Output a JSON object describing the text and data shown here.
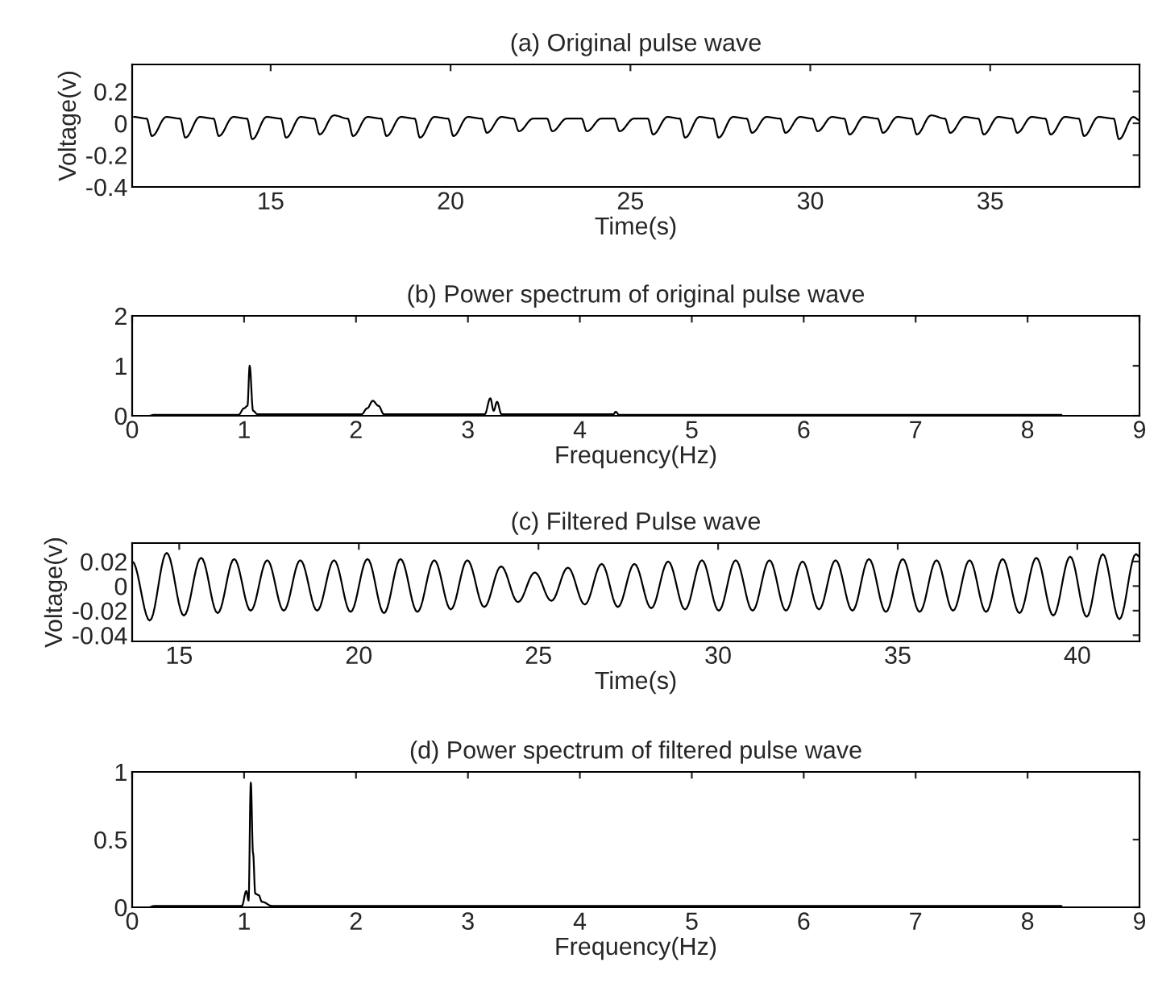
{
  "chart_data": [
    {
      "type": "line",
      "title": "(a) Original pulse wave",
      "xlabel": "Time(s)",
      "ylabel": "Voltage(v)",
      "xlim": [
        11.15,
        39.15
      ],
      "ylim": [
        -0.4,
        0.37
      ],
      "xticks": [
        15,
        20,
        25,
        30,
        35
      ],
      "yticks": [
        -0.4,
        -0.2,
        0,
        0.2
      ],
      "series": [
        {
          "color": "#000000",
          "x": [
            11.2,
            11.55,
            11.7,
            12.1,
            12.48,
            12.63,
            13.03,
            13.41,
            13.56,
            13.96,
            14.34,
            14.49,
            14.89,
            15.28,
            15.43,
            15.83,
            16.21,
            16.36,
            16.76,
            17.14,
            17.29,
            17.69,
            18.07,
            18.22,
            18.62,
            19.0,
            19.15,
            19.55,
            19.93,
            20.08,
            20.48,
            20.86,
            21.01,
            21.41,
            21.75,
            21.9,
            22.3,
            22.68,
            22.83,
            23.23,
            23.64,
            23.79,
            24.19,
            24.55,
            24.7,
            25.1,
            25.48,
            25.63,
            26.03,
            26.37,
            26.52,
            26.92,
            27.3,
            27.45,
            27.85,
            28.23,
            28.38,
            28.78,
            29.16,
            29.31,
            29.71,
            30.05,
            30.2,
            30.6,
            30.94,
            31.09,
            31.49,
            31.87,
            32.02,
            32.42,
            32.81,
            32.96,
            33.36,
            33.74,
            33.89,
            34.29,
            34.67,
            34.82,
            35.22,
            35.6,
            35.75,
            36.15,
            36.53,
            36.68,
            37.08,
            37.46,
            37.61,
            38.01,
            38.43,
            38.58,
            38.98,
            39.15
          ],
          "values": [
            0.04,
            0.03,
            -0.08,
            0.04,
            0.03,
            -0.09,
            0.04,
            0.03,
            -0.08,
            0.04,
            0.03,
            -0.1,
            0.04,
            0.03,
            -0.09,
            0.04,
            0.03,
            -0.07,
            0.05,
            0.03,
            -0.08,
            0.04,
            0.03,
            -0.08,
            0.04,
            0.03,
            -0.09,
            0.04,
            0.03,
            -0.08,
            0.04,
            0.03,
            -0.06,
            0.04,
            0.03,
            -0.05,
            0.03,
            0.03,
            -0.05,
            0.03,
            0.03,
            -0.05,
            0.03,
            0.03,
            -0.05,
            0.03,
            0.03,
            -0.07,
            0.04,
            0.03,
            -0.09,
            0.04,
            0.03,
            -0.09,
            0.04,
            0.03,
            -0.06,
            0.04,
            0.03,
            -0.06,
            0.04,
            0.03,
            -0.05,
            0.04,
            0.03,
            -0.07,
            0.04,
            0.03,
            -0.06,
            0.04,
            0.03,
            -0.07,
            0.05,
            0.03,
            -0.06,
            0.04,
            0.03,
            -0.07,
            0.04,
            0.03,
            -0.06,
            0.04,
            0.03,
            -0.07,
            0.04,
            0.03,
            -0.08,
            0.04,
            0.03,
            -0.1,
            0.04,
            0.02
          ]
        }
      ]
    },
    {
      "type": "line",
      "title": "(b) Power spectrum of original pulse wave",
      "xlabel": "Frequency(Hz)",
      "xlim": [
        0,
        9
      ],
      "ylim": [
        0,
        2
      ],
      "xticks": [
        0,
        1,
        2,
        3,
        4,
        5,
        6,
        7,
        8,
        9
      ],
      "yticks": [
        0,
        1,
        2
      ],
      "series": [
        {
          "color": "#000000",
          "x": [
            0.15,
            0.2,
            0.95,
            1.0,
            1.03,
            1.05,
            1.08,
            1.12,
            2.05,
            2.1,
            2.15,
            2.2,
            2.25,
            3.15,
            3.2,
            3.23,
            3.26,
            3.3,
            4.3,
            4.32,
            4.35,
            8.3,
            8.31
          ],
          "values": [
            0,
            0.02,
            0.02,
            0.15,
            0.2,
            1.0,
            0.1,
            0.03,
            0.03,
            0.15,
            0.3,
            0.2,
            0.03,
            0.03,
            0.35,
            0.1,
            0.28,
            0.03,
            0.03,
            0.08,
            0.02,
            0.02,
            0
          ]
        }
      ]
    },
    {
      "type": "line",
      "title": "(c) Filtered Pulse wave",
      "xlabel": "Time(s)",
      "ylabel": "Voltage(v)",
      "xlim": [
        13.69,
        41.73
      ],
      "ylim": [
        -0.045,
        0.035
      ],
      "xticks": [
        15,
        20,
        25,
        30,
        35,
        40
      ],
      "yticks": [
        -0.04,
        -0.02,
        0,
        0.02
      ],
      "series": [
        {
          "color": "#000000",
          "x": [
            13.69,
            14.18,
            14.65,
            15.13,
            15.61,
            16.07,
            16.53,
            16.99,
            17.45,
            17.91,
            18.37,
            18.84,
            19.31,
            19.77,
            20.24,
            20.7,
            21.16,
            21.63,
            22.1,
            22.56,
            23.02,
            23.49,
            23.96,
            24.43,
            24.9,
            25.36,
            25.82,
            26.29,
            26.76,
            27.21,
            27.67,
            28.14,
            28.61,
            29.08,
            29.55,
            30.02,
            30.49,
            30.96,
            31.43,
            31.89,
            32.35,
            32.81,
            33.27,
            33.74,
            34.2,
            34.67,
            35.14,
            35.61,
            36.08,
            36.54,
            37.0,
            37.46,
            37.92,
            38.39,
            38.86,
            39.33,
            39.8,
            40.26,
            40.71,
            41.17,
            41.63,
            41.73
          ],
          "values": [
            0.02,
            -0.028,
            0.027,
            -0.024,
            0.023,
            -0.022,
            0.022,
            -0.02,
            0.021,
            -0.02,
            0.021,
            -0.02,
            0.021,
            -0.021,
            0.022,
            -0.022,
            0.022,
            -0.021,
            0.021,
            -0.019,
            0.021,
            -0.017,
            0.016,
            -0.013,
            0.011,
            -0.012,
            0.015,
            -0.015,
            0.018,
            -0.017,
            0.018,
            -0.018,
            0.02,
            -0.019,
            0.021,
            -0.02,
            0.021,
            -0.02,
            0.021,
            -0.02,
            0.02,
            -0.019,
            0.021,
            -0.02,
            0.022,
            -0.021,
            0.022,
            -0.021,
            0.021,
            -0.02,
            0.021,
            -0.021,
            0.022,
            -0.022,
            0.023,
            -0.024,
            0.024,
            -0.025,
            0.026,
            -0.027,
            0.026,
            0.024
          ]
        }
      ]
    },
    {
      "type": "line",
      "title": "(d) Power spectrum of filtered pulse wave",
      "xlabel": "Frequency(Hz)",
      "xlim": [
        0,
        9
      ],
      "ylim": [
        0,
        1
      ],
      "xticks": [
        0,
        1,
        2,
        3,
        4,
        5,
        6,
        7,
        8,
        9
      ],
      "yticks": [
        0,
        0.5,
        1
      ],
      "series": [
        {
          "color": "#000000",
          "x": [
            0.15,
            0.2,
            0.98,
            1.02,
            1.04,
            1.06,
            1.08,
            1.1,
            1.13,
            1.16,
            1.25,
            8.3,
            8.31
          ],
          "values": [
            0,
            0.01,
            0.01,
            0.12,
            0.05,
            0.92,
            0.4,
            0.1,
            0.09,
            0.04,
            0.01,
            0.01,
            0
          ]
        }
      ]
    }
  ]
}
